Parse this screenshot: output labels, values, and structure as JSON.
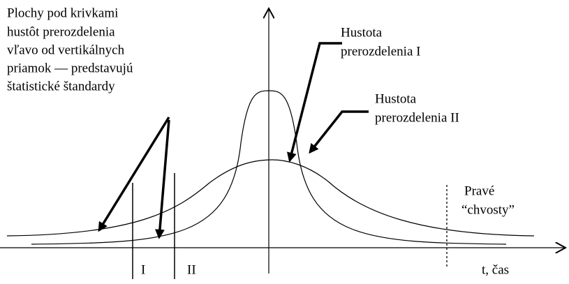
{
  "note_left": {
    "lines": [
      "Plochy pod krivkami",
      "hustôt prerozdelenia",
      "vľavo od vertikálnych",
      "priamok — predstavujú",
      "štatistické štandardy"
    ]
  },
  "label_density_1": {
    "lines": [
      "Hustota",
      "prerozdelenia I"
    ]
  },
  "label_density_2": {
    "lines": [
      "Hustota",
      "prerozdelenia II"
    ]
  },
  "label_tails": {
    "lines": [
      "Pravé",
      "“chvosty”"
    ]
  },
  "marker_1": "I",
  "marker_2": "II",
  "axis_label": "t, čas"
}
